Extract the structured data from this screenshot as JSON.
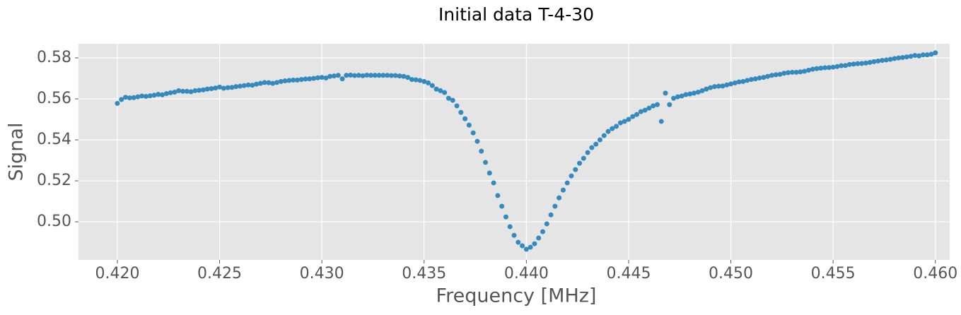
{
  "chart_data": {
    "type": "scatter",
    "title": "Initial data T-4-30",
    "x_label": "Frequency [MHz]",
    "y_label": "Signal",
    "color": "#348abd",
    "grid": true,
    "xlim": [
      0.4181,
      0.4607
    ],
    "ylim": [
      0.4814,
      0.5869
    ],
    "xticks": [
      {
        "value": 0.42,
        "label": "0.420"
      },
      {
        "value": 0.425,
        "label": "0.425"
      },
      {
        "value": 0.43,
        "label": "0.430"
      },
      {
        "value": 0.435,
        "label": "0.435"
      },
      {
        "value": 0.44,
        "label": "0.440"
      },
      {
        "value": 0.445,
        "label": "0.445"
      },
      {
        "value": 0.45,
        "label": "0.450"
      },
      {
        "value": 0.455,
        "label": "0.455"
      },
      {
        "value": 0.46,
        "label": "0.460"
      }
    ],
    "yticks": [
      {
        "value": 0.5,
        "label": "0.50"
      },
      {
        "value": 0.52,
        "label": "0.52"
      },
      {
        "value": 0.54,
        "label": "0.54"
      },
      {
        "value": 0.56,
        "label": "0.56"
      },
      {
        "value": 0.58,
        "label": "0.58"
      }
    ],
    "x": [
      0.42,
      0.4202,
      0.4204,
      0.4206,
      0.4208,
      0.421,
      0.4212,
      0.4214,
      0.4216,
      0.4218,
      0.422,
      0.4222,
      0.4224,
      0.4226,
      0.4228,
      0.423,
      0.4232,
      0.4234,
      0.4236,
      0.4238,
      0.424,
      0.4242,
      0.4244,
      0.4246,
      0.4248,
      0.425,
      0.4252,
      0.4254,
      0.4256,
      0.4258,
      0.426,
      0.4262,
      0.4264,
      0.4266,
      0.4268,
      0.427,
      0.4272,
      0.4274,
      0.4276,
      0.4278,
      0.428,
      0.4282,
      0.4284,
      0.4286,
      0.4288,
      0.429,
      0.4292,
      0.4294,
      0.4296,
      0.4298,
      0.43,
      0.4302,
      0.4304,
      0.4306,
      0.4308,
      0.431,
      0.4312,
      0.4314,
      0.4316,
      0.4318,
      0.432,
      0.4322,
      0.4324,
      0.4326,
      0.4328,
      0.433,
      0.4332,
      0.4334,
      0.4336,
      0.4338,
      0.434,
      0.4342,
      0.4344,
      0.4346,
      0.4348,
      0.435,
      0.4352,
      0.4354,
      0.4356,
      0.4358,
      0.436,
      0.4362,
      0.4364,
      0.4366,
      0.4368,
      0.437,
      0.4372,
      0.4374,
      0.4376,
      0.4378,
      0.438,
      0.4382,
      0.4384,
      0.4386,
      0.4388,
      0.439,
      0.4392,
      0.4394,
      0.4396,
      0.4398,
      0.44,
      0.4402,
      0.4404,
      0.4406,
      0.4408,
      0.441,
      0.4412,
      0.4414,
      0.4416,
      0.4418,
      0.442,
      0.4422,
      0.4424,
      0.4426,
      0.4428,
      0.443,
      0.4432,
      0.4434,
      0.4436,
      0.4438,
      0.444,
      0.4442,
      0.4444,
      0.4446,
      0.4448,
      0.445,
      0.4452,
      0.4454,
      0.4456,
      0.4458,
      0.446,
      0.4462,
      0.4464,
      0.4466,
      0.4468,
      0.447,
      0.4472,
      0.4474,
      0.4476,
      0.4478,
      0.448,
      0.4482,
      0.4484,
      0.4486,
      0.4488,
      0.449,
      0.4492,
      0.4494,
      0.4496,
      0.4498,
      0.45,
      0.4502,
      0.4504,
      0.4506,
      0.4508,
      0.451,
      0.4512,
      0.4514,
      0.4516,
      0.4518,
      0.452,
      0.4522,
      0.4524,
      0.4526,
      0.4528,
      0.453,
      0.4532,
      0.4534,
      0.4536,
      0.4538,
      0.454,
      0.4542,
      0.4544,
      0.4546,
      0.4548,
      0.455,
      0.4552,
      0.4554,
      0.4556,
      0.4558,
      0.456,
      0.4562,
      0.4564,
      0.4566,
      0.4568,
      0.457,
      0.4572,
      0.4574,
      0.4576,
      0.4578,
      0.458,
      0.4582,
      0.4584,
      0.4586,
      0.4588,
      0.459,
      0.4592,
      0.4594,
      0.4596,
      0.4598,
      0.46
    ],
    "values": [
      0.5578,
      0.5597,
      0.5608,
      0.5605,
      0.5606,
      0.561,
      0.5614,
      0.5612,
      0.5615,
      0.5618,
      0.5622,
      0.562,
      0.5626,
      0.563,
      0.5633,
      0.564,
      0.5637,
      0.5637,
      0.5635,
      0.564,
      0.5642,
      0.5644,
      0.5648,
      0.565,
      0.5653,
      0.5658,
      0.5652,
      0.5655,
      0.5656,
      0.566,
      0.5662,
      0.5665,
      0.5668,
      0.5667,
      0.5672,
      0.5676,
      0.568,
      0.5679,
      0.5676,
      0.568,
      0.5685,
      0.5688,
      0.569,
      0.5692,
      0.5692,
      0.5695,
      0.5697,
      0.5698,
      0.57,
      0.5703,
      0.5705,
      0.5702,
      0.571,
      0.5712,
      0.5715,
      0.5698,
      0.5715,
      0.5716,
      0.5714,
      0.5715,
      0.5713,
      0.5716,
      0.5715,
      0.5715,
      0.5715,
      0.5715,
      0.5715,
      0.5714,
      0.5714,
      0.5712,
      0.571,
      0.5705,
      0.5695,
      0.5693,
      0.569,
      0.5685,
      0.5678,
      0.5665,
      0.5648,
      0.564,
      0.5631,
      0.5603,
      0.5593,
      0.5566,
      0.5534,
      0.5503,
      0.5472,
      0.5434,
      0.5393,
      0.5345,
      0.529,
      0.5238,
      0.519,
      0.5128,
      0.5076,
      0.5024,
      0.4976,
      0.4934,
      0.49,
      0.4883,
      0.4866,
      0.4876,
      0.4893,
      0.4921,
      0.4952,
      0.499,
      0.5034,
      0.5076,
      0.5117,
      0.5155,
      0.519,
      0.5224,
      0.5255,
      0.5286,
      0.531,
      0.5338,
      0.5362,
      0.5379,
      0.54,
      0.5421,
      0.5441,
      0.5455,
      0.5466,
      0.5483,
      0.549,
      0.55,
      0.5514,
      0.5524,
      0.5538,
      0.5545,
      0.5555,
      0.5566,
      0.5572,
      0.549,
      0.5628,
      0.5572,
      0.5603,
      0.561,
      0.5614,
      0.5621,
      0.5624,
      0.5628,
      0.5633,
      0.564,
      0.5648,
      0.5655,
      0.566,
      0.5662,
      0.5663,
      0.5668,
      0.5673,
      0.5678,
      0.5683,
      0.5685,
      0.569,
      0.5695,
      0.5698,
      0.5702,
      0.5705,
      0.571,
      0.5715,
      0.5718,
      0.572,
      0.5725,
      0.5728,
      0.573,
      0.573,
      0.5732,
      0.5735,
      0.574,
      0.5745,
      0.5748,
      0.575,
      0.5752,
      0.5753,
      0.5755,
      0.5758,
      0.5762,
      0.5763,
      0.5768,
      0.577,
      0.5772,
      0.5773,
      0.5775,
      0.5778,
      0.5782,
      0.5785,
      0.5788,
      0.579,
      0.5793,
      0.5797,
      0.58,
      0.5802,
      0.5805,
      0.5808,
      0.5812,
      0.581,
      0.5815,
      0.5815,
      0.5818,
      0.5825
    ]
  }
}
